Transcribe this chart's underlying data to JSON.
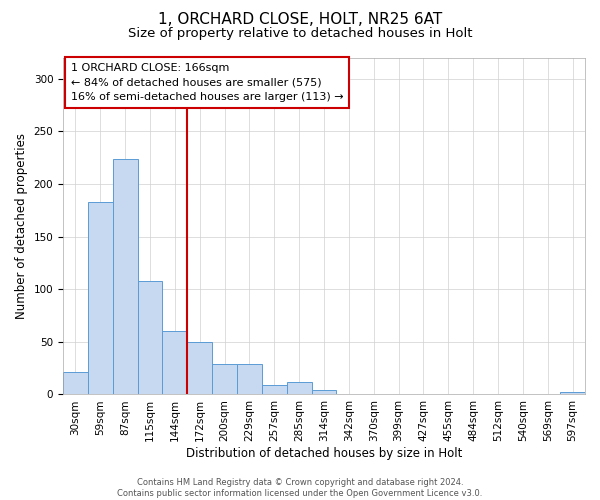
{
  "title_line1": "1, ORCHARD CLOSE, HOLT, NR25 6AT",
  "title_line2": "Size of property relative to detached houses in Holt",
  "xlabel": "Distribution of detached houses by size in Holt",
  "ylabel": "Number of detached properties",
  "bar_values": [
    21,
    183,
    224,
    108,
    60,
    50,
    29,
    29,
    9,
    12,
    4,
    0,
    0,
    0,
    0,
    0,
    0,
    0,
    0,
    0,
    2
  ],
  "bar_labels": [
    "30sqm",
    "59sqm",
    "87sqm",
    "115sqm",
    "144sqm",
    "172sqm",
    "200sqm",
    "229sqm",
    "257sqm",
    "285sqm",
    "314sqm",
    "342sqm",
    "370sqm",
    "399sqm",
    "427sqm",
    "455sqm",
    "484sqm",
    "512sqm",
    "540sqm",
    "569sqm",
    "597sqm"
  ],
  "bar_color": "#c6d9f0",
  "bar_edge_color": "#5b9bd5",
  "vline_color": "#cc0000",
  "annotation_box_text": "1 ORCHARD CLOSE: 166sqm\n← 84% of detached houses are smaller (575)\n16% of semi-detached houses are larger (113) →",
  "ylim": [
    0,
    320
  ],
  "yticks": [
    0,
    50,
    100,
    150,
    200,
    250,
    300
  ],
  "grid_color": "#d0d0d0",
  "background_color": "#ffffff",
  "footnote": "Contains HM Land Registry data © Crown copyright and database right 2024.\nContains public sector information licensed under the Open Government Licence v3.0.",
  "title_fontsize": 11,
  "subtitle_fontsize": 9.5,
  "label_fontsize": 8.5,
  "tick_fontsize": 7.5,
  "annotation_fontsize": 8,
  "footnote_fontsize": 6
}
